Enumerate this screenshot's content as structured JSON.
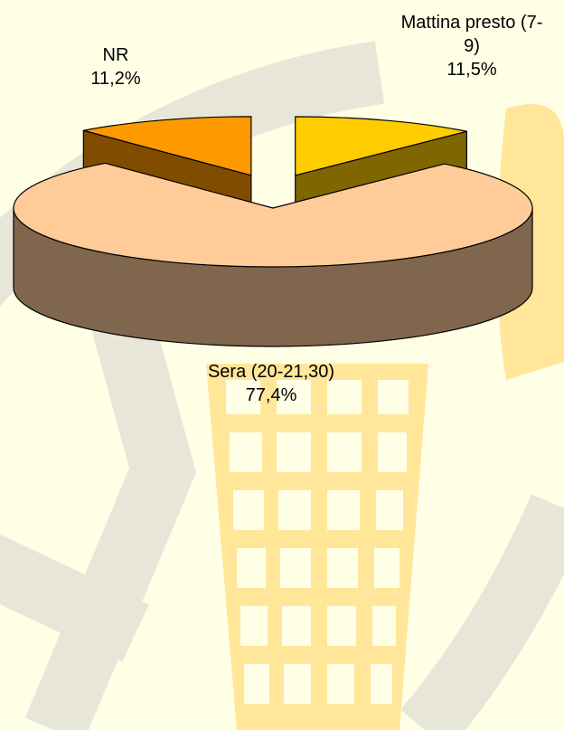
{
  "chart_data": {
    "type": "pie",
    "three_d": true,
    "categories": [
      "Mattina presto (7-9)",
      "Sera (20-21,30)",
      "NR"
    ],
    "values": [
      11.5,
      77.4,
      11.2
    ],
    "value_labels": [
      "11,5%",
      "77,4%",
      "11,2%"
    ],
    "colors": [
      "#FFCC00",
      "#FFCC99",
      "#FF9900"
    ],
    "exploded": [
      true,
      false,
      true
    ]
  }
}
